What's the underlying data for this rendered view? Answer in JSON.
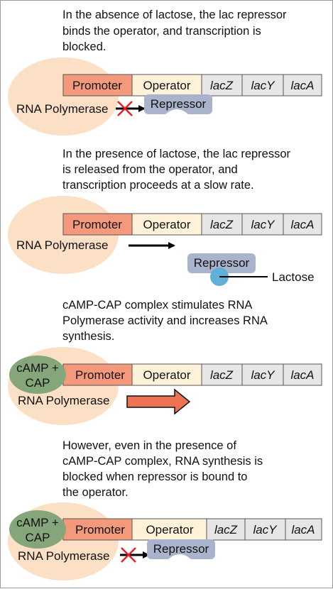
{
  "panels": [
    {
      "caption": [
        "In the absence of lactose, the lac repressor",
        "binds the operator, and transcription is",
        "blocked."
      ]
    },
    {
      "caption": [
        "In the presence of lactose, the lac repressor",
        "is released from the operator, and",
        "transcription proceeds at a slow rate."
      ]
    },
    {
      "caption": [
        "cAMP-CAP complex stimulates RNA",
        "Polymerase activity and increases RNA",
        "synthesis."
      ]
    },
    {
      "caption": [
        "However, even in the presence of",
        "cAMP-CAP complex, RNA synthesis is",
        "blocked when repressor is bound to",
        "the operator."
      ]
    }
  ],
  "operon": {
    "promoter": "Promoter",
    "operator": "Operator",
    "lacZ": "lacZ",
    "lacY": "lacY",
    "lacA": "lacA"
  },
  "labels": {
    "rna_polymerase": "RNA Polymerase",
    "repressor": "Repressor",
    "lactose": "Lactose",
    "camp_cap": [
      "cAMP +",
      "CAP"
    ]
  },
  "colors": {
    "promoter": "#f4997c",
    "operator": "#fff2d9",
    "genes": "#e6e6e6",
    "polymerase": "#fbe0c5",
    "repressor": "#aab3cc",
    "lactose": "#5fb1d9",
    "camp_cap": "#85a67a",
    "block_cross": "#e0202a",
    "enhanced_arrow": "#ee7355"
  }
}
